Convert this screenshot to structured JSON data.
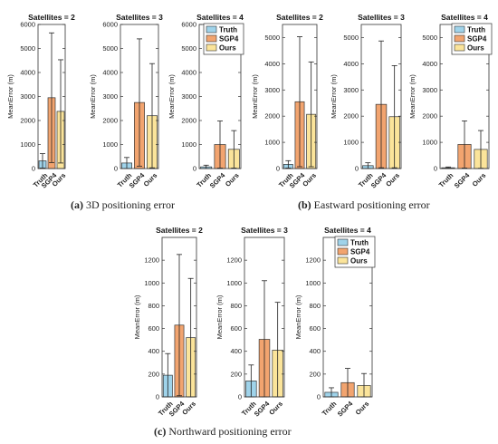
{
  "captions": {
    "a_tag": "(a)",
    "a_text": "3D positioning error",
    "b_tag": "(b)",
    "b_text": "Eastward positioning error",
    "c_tag": "(c)",
    "c_text": "Northward positioning error"
  },
  "colors": {
    "truth": "#9fd3ea",
    "sgp4": "#f2a46f",
    "ours": "#fbe49a",
    "edge": "#333333",
    "error_bar": "#222222"
  },
  "chart_data": [
    {
      "type": "bar",
      "title": "Satellites = 2",
      "ylabel": "MeanError (m)",
      "categories": [
        "Truth",
        "SGP4",
        "Ours"
      ],
      "values": [
        320,
        2950,
        2380
      ],
      "errors": [
        300,
        2700,
        2150
      ],
      "ylim": [
        0,
        6000
      ],
      "yticks": [
        0,
        1000,
        2000,
        3000,
        4000,
        5000,
        6000
      ],
      "legend": false
    },
    {
      "type": "bar",
      "title": "Satellites = 3",
      "ylabel": "MeanError (m)",
      "categories": [
        "Truth",
        "SGP4",
        "Ours"
      ],
      "values": [
        230,
        2750,
        2200
      ],
      "errors": [
        230,
        2650,
        2170
      ],
      "ylim": [
        0,
        6000
      ],
      "yticks": [
        0,
        1000,
        2000,
        3000,
        4000,
        5000,
        6000
      ],
      "legend": false
    },
    {
      "type": "bar",
      "title": "Satellites = 4",
      "ylabel": "MeanError (m)",
      "categories": [
        "Truth",
        "SGP4",
        "Ours"
      ],
      "values": [
        70,
        1000,
        800
      ],
      "errors": [
        70,
        980,
        780
      ],
      "ylim": [
        0,
        6000
      ],
      "yticks": [
        0,
        1000,
        2000,
        3000,
        4000,
        5000,
        6000
      ],
      "legend": true,
      "legend_position": "top-right"
    },
    {
      "type": "bar",
      "title": "Satellites = 2",
      "ylabel": "MeanError (m)",
      "categories": [
        "Truth",
        "SGP4",
        "Ours"
      ],
      "values": [
        160,
        2550,
        2070
      ],
      "errors": [
        140,
        2480,
        2000
      ],
      "ylim": [
        0,
        5500
      ],
      "yticks": [
        0,
        1000,
        2000,
        3000,
        4000,
        5000
      ],
      "legend": false
    },
    {
      "type": "bar",
      "title": "Satellites = 3",
      "ylabel": "MeanError (m)",
      "categories": [
        "Truth",
        "SGP4",
        "Ours"
      ],
      "values": [
        110,
        2450,
        1980
      ],
      "errors": [
        110,
        2420,
        1950
      ],
      "ylim": [
        0,
        5500
      ],
      "yticks": [
        0,
        1000,
        2000,
        3000,
        4000,
        5000
      ],
      "legend": false
    },
    {
      "type": "bar",
      "title": "Satellites = 4",
      "ylabel": "MeanError (m)",
      "categories": [
        "Truth",
        "SGP4",
        "Ours"
      ],
      "values": [
        30,
        920,
        730
      ],
      "errors": [
        30,
        900,
        720
      ],
      "ylim": [
        0,
        5500
      ],
      "yticks": [
        0,
        1000,
        2000,
        3000,
        4000,
        5000
      ],
      "legend": true,
      "legend_position": "top-right"
    },
    {
      "type": "bar",
      "title": "Satellites = 2",
      "ylabel": "MeanError (m)",
      "categories": [
        "Truth",
        "SGP4",
        "Ours"
      ],
      "values": [
        190,
        630,
        520
      ],
      "errors": [
        190,
        620,
        520
      ],
      "ylim": [
        0,
        1400
      ],
      "yticks": [
        0,
        200,
        400,
        600,
        800,
        1000,
        1200
      ],
      "legend": false
    },
    {
      "type": "bar",
      "title": "Satellites = 3",
      "ylabel": "MeanError (m)",
      "categories": [
        "Truth",
        "SGP4",
        "Ours"
      ],
      "values": [
        140,
        505,
        410
      ],
      "errors": [
        140,
        515,
        420
      ],
      "ylim": [
        0,
        1400
      ],
      "yticks": [
        0,
        200,
        400,
        600,
        800,
        1000,
        1200
      ],
      "legend": false
    },
    {
      "type": "bar",
      "title": "Satellites = 4",
      "ylabel": "MeanError (m)",
      "categories": [
        "Truth",
        "SGP4",
        "Ours"
      ],
      "values": [
        40,
        125,
        100
      ],
      "errors": [
        40,
        125,
        105
      ],
      "ylim": [
        0,
        1400
      ],
      "yticks": [
        0,
        200,
        400,
        600,
        800,
        1000,
        1200
      ],
      "legend": true,
      "legend_position": "top-right"
    }
  ]
}
